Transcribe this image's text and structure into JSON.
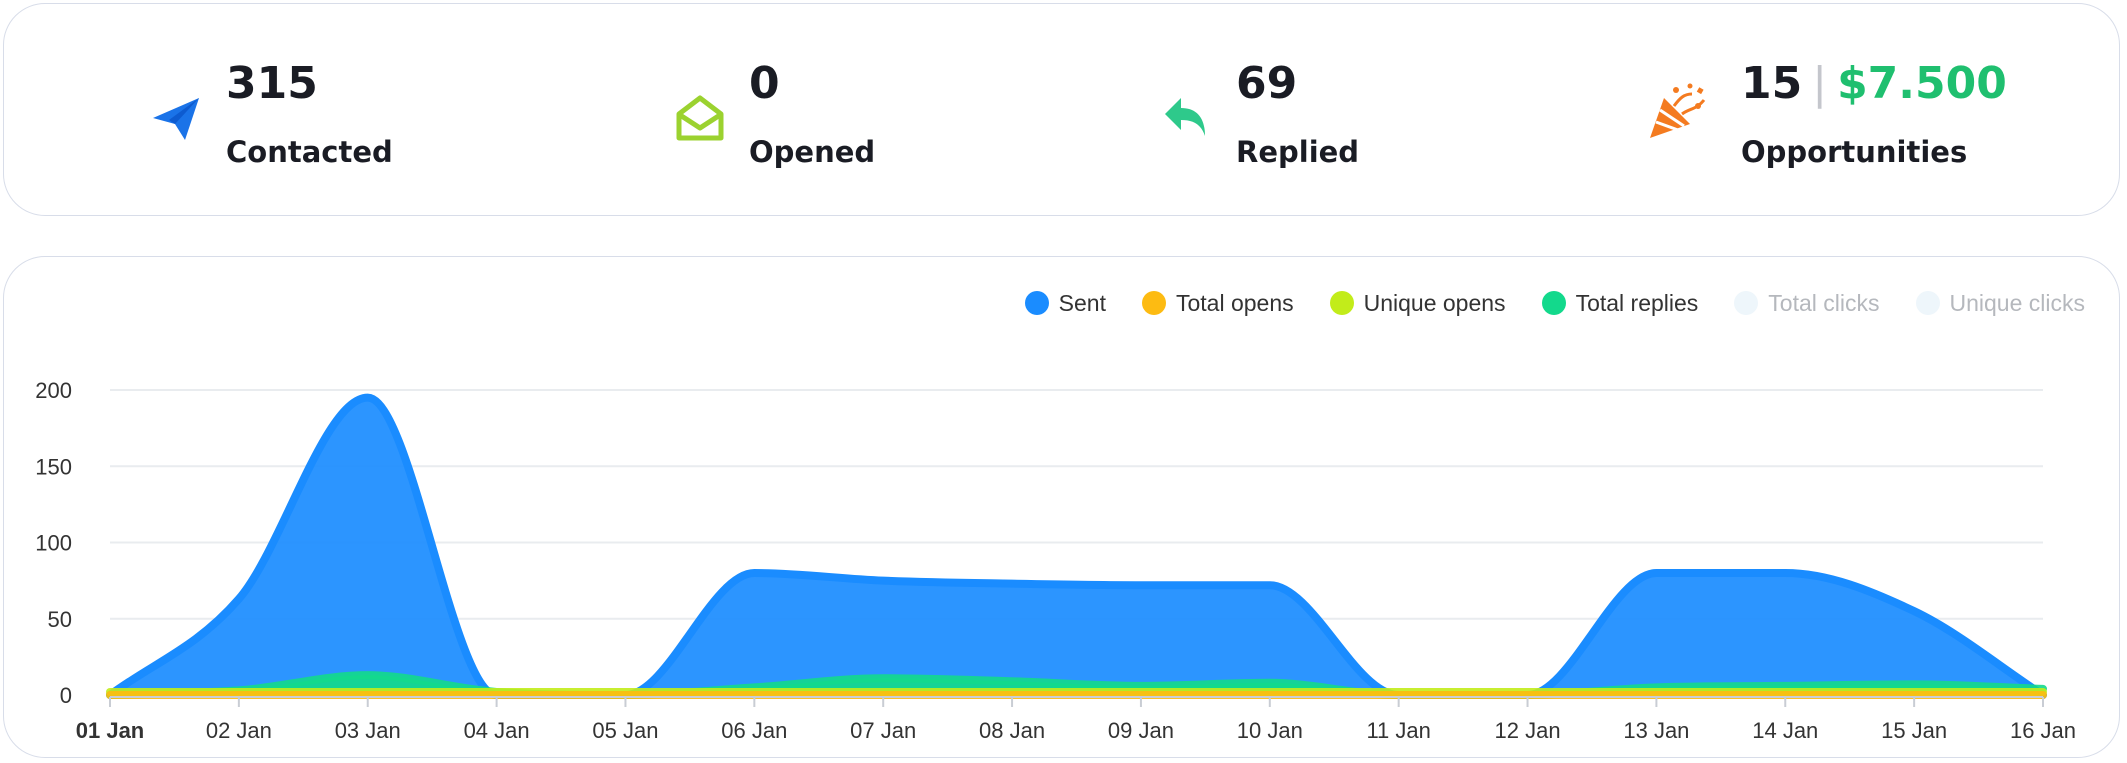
{
  "stats": {
    "contacted": {
      "value": "315",
      "label": "Contacted",
      "icon": "paper-plane-icon",
      "color": "#1a73e8"
    },
    "opened": {
      "value": "0",
      "label": "Opened",
      "icon": "open-envelope-icon",
      "color": "#9bd22f"
    },
    "replied": {
      "value": "69",
      "label": "Replied",
      "icon": "reply-arrow-icon",
      "color": "#2ec98b"
    },
    "opportunities": {
      "value": "15",
      "separator": "|",
      "amount": "$7.500",
      "label": "Opportunities",
      "icon": "party-popper-icon",
      "color": "#f47b20"
    }
  },
  "legend": [
    {
      "label": "Sent",
      "color": "#1a8cff",
      "active": true
    },
    {
      "label": "Total opens",
      "color": "#fdbb12",
      "active": true
    },
    {
      "label": "Unique opens",
      "color": "#c2ec1a",
      "active": true
    },
    {
      "label": "Total replies",
      "color": "#13d98c",
      "active": true
    },
    {
      "label": "Total clicks",
      "color": "#eef6fb",
      "active": false
    },
    {
      "label": "Unique clicks",
      "color": "#eef6fb",
      "active": false
    }
  ],
  "chart_data": {
    "type": "area",
    "x": [
      "01 Jan",
      "02 Jan",
      "03 Jan",
      "04 Jan",
      "05 Jan",
      "06 Jan",
      "07 Jan",
      "08 Jan",
      "09 Jan",
      "10 Jan",
      "11 Jan",
      "12 Jan",
      "13 Jan",
      "14 Jan",
      "15 Jan",
      "16 Jan"
    ],
    "ylim": [
      0,
      200
    ],
    "yticks": [
      0,
      50,
      100,
      150,
      200
    ],
    "grid": true,
    "legend_position": "top-right",
    "series": [
      {
        "name": "Sent",
        "color": "#1a8cff",
        "values": [
          0,
          63,
          195,
          0,
          0,
          80,
          75,
          73,
          72,
          72,
          0,
          0,
          80,
          80,
          55,
          0
        ]
      },
      {
        "name": "Total replies",
        "color": "#13d98c",
        "values": [
          0,
          3,
          13,
          2,
          0,
          5,
          11,
          9,
          6,
          8,
          0,
          0,
          5,
          6,
          7,
          4
        ]
      },
      {
        "name": "Unique opens",
        "color": "#c2ec1a",
        "values": [
          2,
          2,
          2,
          2,
          2,
          2,
          2,
          2,
          2,
          2,
          2,
          2,
          2,
          2,
          2,
          2
        ]
      },
      {
        "name": "Total opens",
        "color": "#fdbb12",
        "values": [
          0,
          0,
          0,
          0,
          0,
          0,
          0,
          0,
          0,
          0,
          0,
          0,
          0,
          0,
          0,
          0
        ]
      }
    ]
  }
}
